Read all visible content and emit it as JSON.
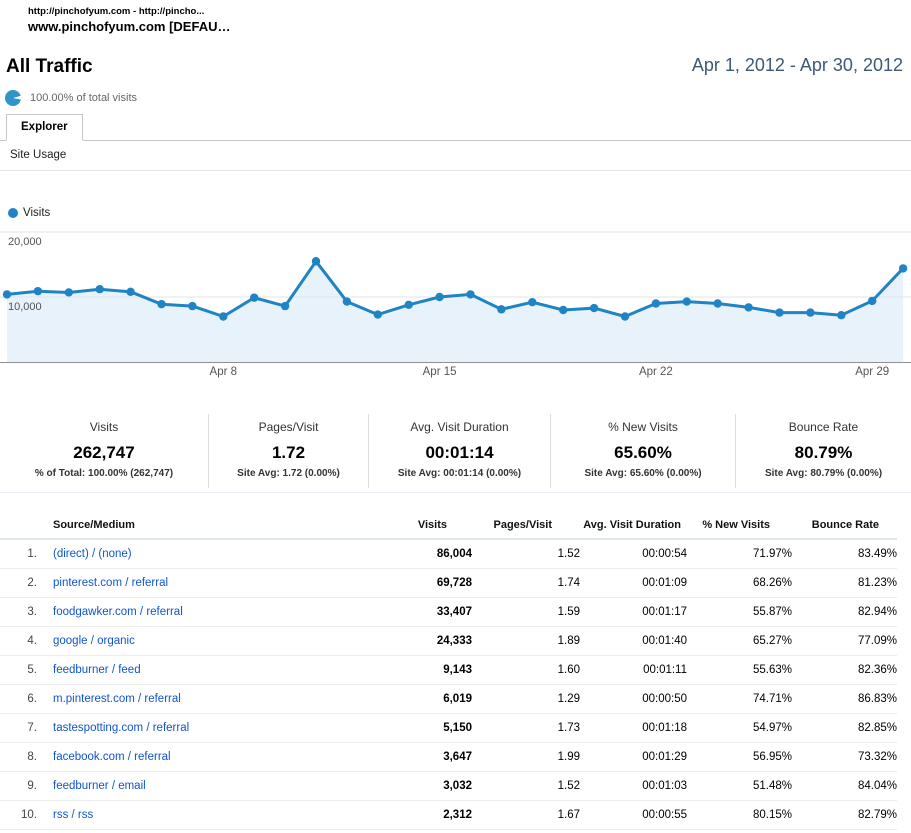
{
  "window": {
    "header_line1": "http://pinchofyum.com - http://pincho...",
    "header_line2": "www.pinchofyum.com [DEFAU…"
  },
  "report": {
    "title": "All Traffic",
    "date_range": "Apr 1, 2012 - Apr 30, 2012",
    "scope_note": "100.00% of total visits",
    "tab_label": "Explorer",
    "subtab_label": "Site Usage"
  },
  "colors": {
    "accent_blue": "#1f83c4",
    "chart_fill": "#d9e9f6",
    "link_blue": "#1155cc",
    "date_text": "#3d5975"
  },
  "chart_data": {
    "type": "area",
    "legend_label": "Visits",
    "series_name": "Visits",
    "x": [
      "Apr 1",
      "Apr 2",
      "Apr 3",
      "Apr 4",
      "Apr 5",
      "Apr 6",
      "Apr 7",
      "Apr 8",
      "Apr 9",
      "Apr 10",
      "Apr 11",
      "Apr 12",
      "Apr 13",
      "Apr 14",
      "Apr 15",
      "Apr 16",
      "Apr 17",
      "Apr 18",
      "Apr 19",
      "Apr 20",
      "Apr 21",
      "Apr 22",
      "Apr 23",
      "Apr 24",
      "Apr 25",
      "Apr 26",
      "Apr 27",
      "Apr 28",
      "Apr 29",
      "Apr 30"
    ],
    "values": [
      10400,
      10900,
      10700,
      11200,
      10800,
      8900,
      8600,
      7000,
      9900,
      8600,
      15500,
      9300,
      7300,
      8800,
      10000,
      10400,
      8100,
      9200,
      8000,
      8300,
      7000,
      9000,
      9300,
      9000,
      8400,
      7600,
      7600,
      7200,
      9400,
      14400
    ],
    "xticks": [
      {
        "label": "Apr 8",
        "day": 8
      },
      {
        "label": "Apr 15",
        "day": 15
      },
      {
        "label": "Apr 22",
        "day": 22
      },
      {
        "label": "Apr 29",
        "day": 29
      }
    ],
    "yticks": [
      {
        "label": "20,000",
        "value": 20000
      },
      {
        "label": "10,000",
        "value": 10000
      }
    ],
    "ylim": [
      0,
      20000
    ],
    "grid": true,
    "legend_position": "top-left",
    "line_color": "#1f83c4",
    "fill_color": "#d9e9f6"
  },
  "metrics": [
    {
      "label": "Visits",
      "value": "262,747",
      "sub": "% of Total: 100.00% (262,747)"
    },
    {
      "label": "Pages/Visit",
      "value": "1.72",
      "sub": "Site Avg: 1.72 (0.00%)"
    },
    {
      "label": "Avg. Visit Duration",
      "value": "00:01:14",
      "sub": "Site Avg: 00:01:14 (0.00%)"
    },
    {
      "label": "% New Visits",
      "value": "65.60%",
      "sub": "Site Avg: 65.60% (0.00%)"
    },
    {
      "label": "Bounce Rate",
      "value": "80.79%",
      "sub": "Site Avg: 80.79% (0.00%)"
    }
  ],
  "table": {
    "columns": [
      "Source/Medium",
      "Visits",
      "Pages/Visit",
      "Avg. Visit Duration",
      "% New Visits",
      "Bounce Rate"
    ],
    "rows": [
      {
        "rank": "1.",
        "source": "(direct) / (none)",
        "visits": "86,004",
        "pages_per_visit": "1.52",
        "avg_visit_duration": "00:00:54",
        "percent_new_visits": "71.97%",
        "bounce_rate": "83.49%"
      },
      {
        "rank": "2.",
        "source": "pinterest.com / referral",
        "visits": "69,728",
        "pages_per_visit": "1.74",
        "avg_visit_duration": "00:01:09",
        "percent_new_visits": "68.26%",
        "bounce_rate": "81.23%"
      },
      {
        "rank": "3.",
        "source": "foodgawker.com / referral",
        "visits": "33,407",
        "pages_per_visit": "1.59",
        "avg_visit_duration": "00:01:17",
        "percent_new_visits": "55.87%",
        "bounce_rate": "82.94%"
      },
      {
        "rank": "4.",
        "source": "google / organic",
        "visits": "24,333",
        "pages_per_visit": "1.89",
        "avg_visit_duration": "00:01:40",
        "percent_new_visits": "65.27%",
        "bounce_rate": "77.09%"
      },
      {
        "rank": "5.",
        "source": "feedburner / feed",
        "visits": "9,143",
        "pages_per_visit": "1.60",
        "avg_visit_duration": "00:01:11",
        "percent_new_visits": "55.63%",
        "bounce_rate": "82.36%"
      },
      {
        "rank": "6.",
        "source": "m.pinterest.com / referral",
        "visits": "6,019",
        "pages_per_visit": "1.29",
        "avg_visit_duration": "00:00:50",
        "percent_new_visits": "74.71%",
        "bounce_rate": "86.83%"
      },
      {
        "rank": "7.",
        "source": "tastespotting.com / referral",
        "visits": "5,150",
        "pages_per_visit": "1.73",
        "avg_visit_duration": "00:01:18",
        "percent_new_visits": "54.97%",
        "bounce_rate": "82.85%"
      },
      {
        "rank": "8.",
        "source": "facebook.com / referral",
        "visits": "3,647",
        "pages_per_visit": "1.99",
        "avg_visit_duration": "00:01:29",
        "percent_new_visits": "56.95%",
        "bounce_rate": "73.32%"
      },
      {
        "rank": "9.",
        "source": "feedburner / email",
        "visits": "3,032",
        "pages_per_visit": "1.52",
        "avg_visit_duration": "00:01:03",
        "percent_new_visits": "51.48%",
        "bounce_rate": "84.04%"
      },
      {
        "rank": "10.",
        "source": "rss / rss",
        "visits": "2,312",
        "pages_per_visit": "1.67",
        "avg_visit_duration": "00:00:55",
        "percent_new_visits": "80.15%",
        "bounce_rate": "82.79%"
      }
    ]
  }
}
